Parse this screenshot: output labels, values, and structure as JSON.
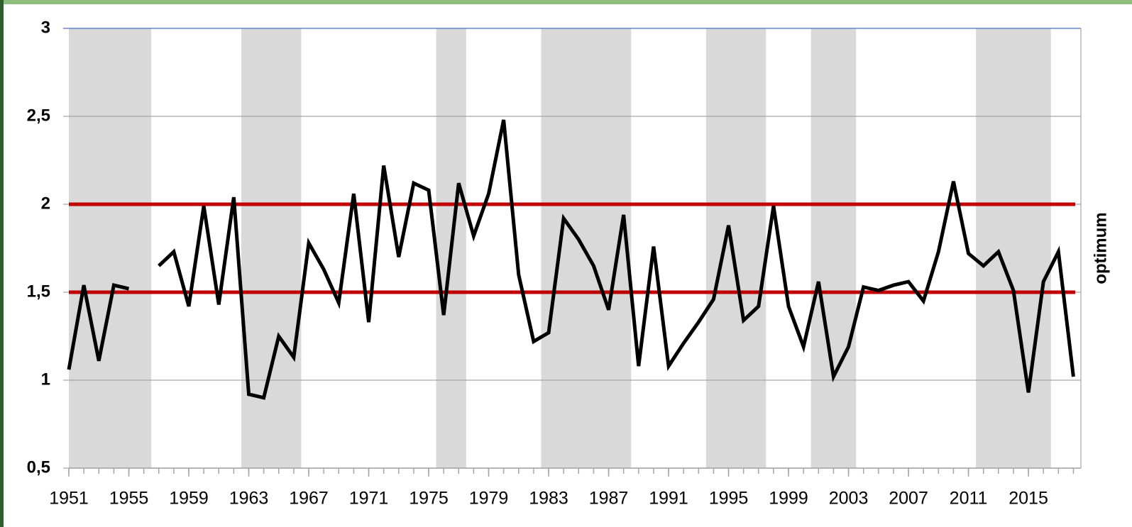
{
  "chart_data": {
    "type": "line",
    "x": [
      1951,
      1952,
      1953,
      1954,
      1955,
      1956,
      1957,
      1958,
      1959,
      1960,
      1961,
      1962,
      1963,
      1964,
      1965,
      1966,
      1967,
      1968,
      1969,
      1970,
      1971,
      1972,
      1973,
      1974,
      1975,
      1976,
      1977,
      1978,
      1979,
      1980,
      1981,
      1982,
      1983,
      1984,
      1985,
      1986,
      1987,
      1988,
      1989,
      1990,
      1991,
      1992,
      1993,
      1994,
      1995,
      1996,
      1997,
      1998,
      1999,
      2000,
      2001,
      2002,
      2003,
      2004,
      2005,
      2006,
      2007,
      2008,
      2009,
      2010,
      2011,
      2012,
      2013,
      2014,
      2015,
      2016,
      2017,
      2018
    ],
    "series": [
      {
        "color": "#000000",
        "values": [
          1.06,
          1.54,
          1.11,
          1.54,
          1.52,
          null,
          1.65,
          1.73,
          1.42,
          1.99,
          1.43,
          2.04,
          0.92,
          0.9,
          1.25,
          1.13,
          1.78,
          1.63,
          1.44,
          2.06,
          1.33,
          2.22,
          1.7,
          2.12,
          2.08,
          1.37,
          2.12,
          1.82,
          2.06,
          2.48,
          1.6,
          1.22,
          1.27,
          1.92,
          1.8,
          1.65,
          1.4,
          1.94,
          1.08,
          1.76,
          1.08,
          1.21,
          1.33,
          1.46,
          1.88,
          1.34,
          1.42,
          1.99,
          1.42,
          1.19,
          1.56,
          1.02,
          1.19,
          1.53,
          1.51,
          1.54,
          1.56,
          1.45,
          1.73,
          2.13,
          1.72,
          1.65,
          1.73,
          1.51,
          0.93,
          1.56,
          1.73,
          1.02
        ]
      }
    ],
    "xlim": [
      1951,
      2018.5
    ],
    "xticks": [
      1951,
      1955,
      1959,
      1963,
      1967,
      1971,
      1975,
      1979,
      1983,
      1987,
      1991,
      1995,
      1999,
      2003,
      2007,
      2011,
      2015
    ],
    "ylim": [
      0.5,
      3
    ],
    "yticks": [
      {
        "value": 0.5,
        "label": "0,5"
      },
      1,
      {
        "value": 1.5,
        "label": "1,5"
      },
      2,
      {
        "value": 2.5,
        "label": "2,5"
      },
      3
    ],
    "grid": true,
    "shaded_periods": [
      [
        1951,
        1956.5
      ],
      [
        1962.5,
        1966.5
      ],
      [
        1975.5,
        1977.5
      ],
      [
        1982.5,
        1988.5
      ],
      [
        1993.5,
        1997.5
      ],
      [
        2000.5,
        2003.5
      ],
      [
        2011.5,
        2016.5
      ]
    ],
    "shade_color": "#d9d9d9",
    "reference_lines": [
      1.5,
      2
    ],
    "reference_color": "#c00000",
    "reference_label": "optimum"
  }
}
